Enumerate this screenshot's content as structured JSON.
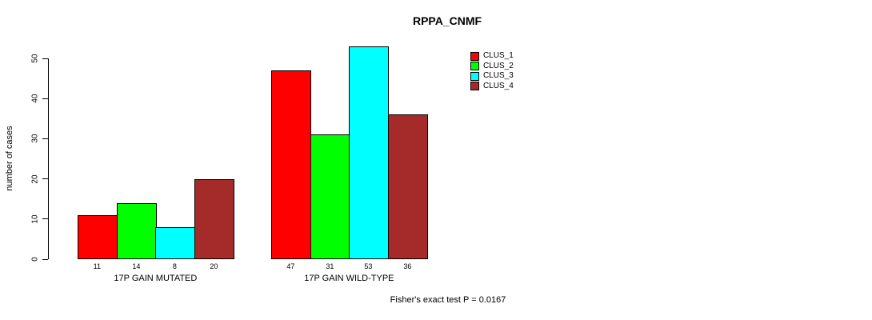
{
  "chart_data": {
    "type": "bar",
    "title": "RPPA_CNMF",
    "ylabel": "number of cases",
    "xlabel": "",
    "ylim": [
      0,
      55
    ],
    "yticks": [
      0,
      10,
      20,
      30,
      40,
      50
    ],
    "grid": false,
    "legend_position": "top-right",
    "bar_value_labels": true,
    "categories": [
      "17P GAIN MUTATED",
      "17P GAIN WILD-TYPE"
    ],
    "series": [
      {
        "name": "CLUS_1",
        "color": "#FF0000",
        "values": [
          11,
          47
        ]
      },
      {
        "name": "CLUS_2",
        "color": "#00FF00",
        "values": [
          14,
          31
        ]
      },
      {
        "name": "CLUS_3",
        "color": "#00FFFF",
        "values": [
          8,
          53
        ]
      },
      {
        "name": "CLUS_4",
        "color": "#A52A2A",
        "values": [
          20,
          36
        ]
      }
    ],
    "annotation": "Fisher's exact test P = 0.0167"
  }
}
